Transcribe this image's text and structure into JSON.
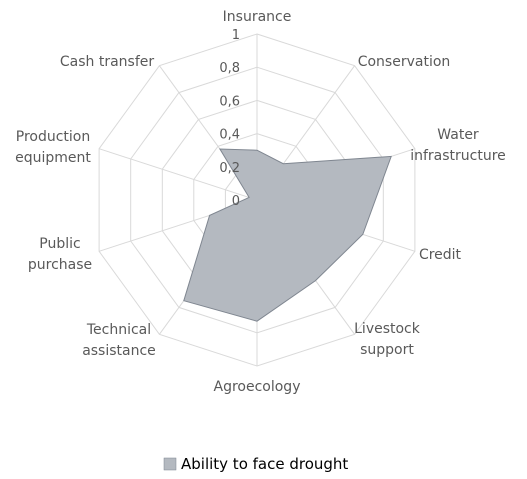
{
  "chart_data": {
    "type": "radar",
    "categories": [
      "Insurance",
      "Conservation",
      "Water infrastructure",
      "Credit",
      "Livestock support",
      "Agroecology",
      "Technical assistance",
      "Public purchase",
      "Production equipment",
      "Cash transfer"
    ],
    "category_lines": [
      [
        "Insurance"
      ],
      [
        "Conservation"
      ],
      [
        "Water",
        "infrastructure"
      ],
      [
        "Credit"
      ],
      [
        "Livestock",
        "support"
      ],
      [
        "Agroecology"
      ],
      [
        "Technical",
        "assistance"
      ],
      [
        "Public",
        "purchase"
      ],
      [
        "Production",
        "equipment"
      ],
      [
        "Cash transfer"
      ]
    ],
    "series": [
      {
        "name": "Ability to face drought",
        "values": [
          0.3,
          0.27,
          0.85,
          0.67,
          0.6,
          0.73,
          0.75,
          0.3,
          0.05,
          0.38
        ]
      }
    ],
    "rlim": [
      0,
      1
    ],
    "ticks": [
      0,
      0.2,
      0.4,
      0.6,
      0.8,
      1
    ],
    "tick_labels": [
      "0",
      "0,2",
      "0,4",
      "0,6",
      "0,8",
      "1"
    ],
    "legend": "bottom",
    "grid": true,
    "colors": {
      "fill": "#b4b9c0",
      "stroke": "#7f8690",
      "grid": "#d9d9d9",
      "text": "#595959"
    }
  }
}
